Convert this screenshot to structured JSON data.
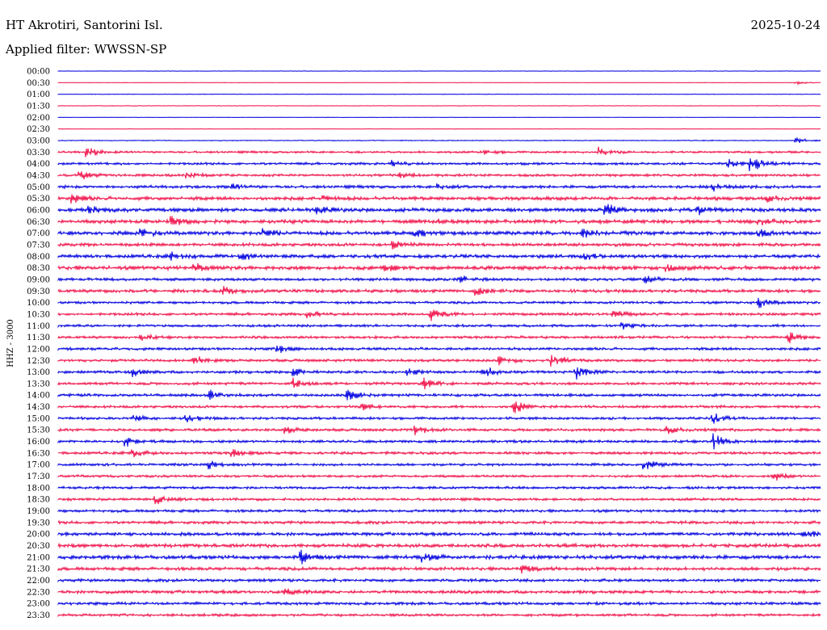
{
  "header": {
    "station": "HT Akrotiri, Santorini Isl.",
    "date": "2025-10-24",
    "filter": "Applied filter: WWSSN-SP"
  },
  "colors": {
    "trace_a": "#0000e0",
    "trace_b": "#f0124a",
    "background": "#ffffff",
    "text": "#000000"
  },
  "chart_data": {
    "type": "line",
    "ylabel": "HHZ - 3000",
    "time_labels": [
      "00:00",
      "00:30",
      "01:00",
      "01:30",
      "02:00",
      "02:30",
      "03:00",
      "03:30",
      "04:00",
      "04:30",
      "05:00",
      "05:30",
      "06:00",
      "06:30",
      "07:00",
      "07:30",
      "08:00",
      "08:30",
      "09:00",
      "09:30",
      "10:00",
      "10:30",
      "11:00",
      "11:30",
      "12:00",
      "12:30",
      "13:00",
      "13:30",
      "14:00",
      "14:30",
      "15:00",
      "15:30",
      "16:00",
      "16:30",
      "17:00",
      "17:30",
      "18:00",
      "18:30",
      "19:00",
      "19:30",
      "20:00",
      "20:30",
      "21:00",
      "21:30",
      "22:00",
      "22:30",
      "23:00",
      "23:30"
    ],
    "row_noise": [
      0.3,
      0.3,
      0.4,
      0.4,
      0.3,
      0.3,
      0.6,
      1.5,
      1.7,
      1.8,
      2.0,
      2.4,
      2.6,
      2.6,
      2.6,
      2.2,
      2.4,
      2.7,
      2.0,
      2.2,
      1.8,
      1.9,
      1.8,
      1.8,
      1.9,
      1.9,
      1.9,
      1.9,
      1.9,
      1.8,
      1.8,
      1.9,
      1.9,
      1.9,
      1.8,
      1.7,
      1.8,
      1.8,
      1.9,
      2.0,
      2.3,
      2.5,
      2.6,
      2.3,
      2.0,
      2.2,
      2.0,
      1.8
    ],
    "events": [
      {
        "row": 1,
        "t": 0.97,
        "a": 2
      },
      {
        "row": 6,
        "t": 0.97,
        "a": 4
      },
      {
        "row": 7,
        "t": 0.04,
        "a": 8
      },
      {
        "row": 7,
        "t": 0.56,
        "a": 4
      },
      {
        "row": 7,
        "t": 0.71,
        "a": 6
      },
      {
        "row": 8,
        "t": 0.44,
        "a": 4
      },
      {
        "row": 8,
        "t": 0.88,
        "a": 6
      },
      {
        "row": 8,
        "t": 0.91,
        "a": 10
      },
      {
        "row": 9,
        "t": 0.03,
        "a": 6
      },
      {
        "row": 9,
        "t": 0.17,
        "a": 4
      },
      {
        "row": 9,
        "t": 0.45,
        "a": 3
      },
      {
        "row": 10,
        "t": 0.23,
        "a": 4
      },
      {
        "row": 10,
        "t": 0.5,
        "a": 3
      },
      {
        "row": 10,
        "t": 0.86,
        "a": 5
      },
      {
        "row": 11,
        "t": 0.02,
        "a": 7
      },
      {
        "row": 11,
        "t": 0.35,
        "a": 4
      },
      {
        "row": 11,
        "t": 0.93,
        "a": 6
      },
      {
        "row": 12,
        "t": 0.04,
        "a": 6
      },
      {
        "row": 12,
        "t": 0.34,
        "a": 6
      },
      {
        "row": 12,
        "t": 0.72,
        "a": 9
      },
      {
        "row": 12,
        "t": 0.84,
        "a": 5
      },
      {
        "row": 13,
        "t": 0.15,
        "a": 6
      },
      {
        "row": 13,
        "t": 0.5,
        "a": 4
      },
      {
        "row": 13,
        "t": 0.92,
        "a": 5
      },
      {
        "row": 14,
        "t": 0.11,
        "a": 5
      },
      {
        "row": 14,
        "t": 0.27,
        "a": 6
      },
      {
        "row": 14,
        "t": 0.47,
        "a": 7
      },
      {
        "row": 14,
        "t": 0.69,
        "a": 7
      },
      {
        "row": 14,
        "t": 0.92,
        "a": 6
      },
      {
        "row": 15,
        "t": 0.44,
        "a": 6
      },
      {
        "row": 16,
        "t": 0.15,
        "a": 5
      },
      {
        "row": 16,
        "t": 0.24,
        "a": 5
      },
      {
        "row": 16,
        "t": 0.69,
        "a": 6
      },
      {
        "row": 17,
        "t": 0.18,
        "a": 5
      },
      {
        "row": 17,
        "t": 0.43,
        "a": 5
      },
      {
        "row": 17,
        "t": 0.8,
        "a": 4
      },
      {
        "row": 18,
        "t": 0.53,
        "a": 4
      },
      {
        "row": 18,
        "t": 0.77,
        "a": 6
      },
      {
        "row": 19,
        "t": 0.22,
        "a": 6
      },
      {
        "row": 19,
        "t": 0.55,
        "a": 6
      },
      {
        "row": 20,
        "t": 0.92,
        "a": 8
      },
      {
        "row": 21,
        "t": 0.33,
        "a": 5
      },
      {
        "row": 21,
        "t": 0.49,
        "a": 8
      },
      {
        "row": 21,
        "t": 0.73,
        "a": 6
      },
      {
        "row": 22,
        "t": 0.74,
        "a": 8
      },
      {
        "row": 23,
        "t": 0.11,
        "a": 4
      },
      {
        "row": 23,
        "t": 0.96,
        "a": 9
      },
      {
        "row": 24,
        "t": 0.29,
        "a": 5
      },
      {
        "row": 25,
        "t": 0.18,
        "a": 8
      },
      {
        "row": 25,
        "t": 0.58,
        "a": 6
      },
      {
        "row": 25,
        "t": 0.65,
        "a": 9
      },
      {
        "row": 26,
        "t": 0.1,
        "a": 5
      },
      {
        "row": 26,
        "t": 0.31,
        "a": 6
      },
      {
        "row": 26,
        "t": 0.46,
        "a": 5
      },
      {
        "row": 26,
        "t": 0.56,
        "a": 8
      },
      {
        "row": 26,
        "t": 0.68,
        "a": 9
      },
      {
        "row": 27,
        "t": 0.31,
        "a": 6
      },
      {
        "row": 27,
        "t": 0.48,
        "a": 8
      },
      {
        "row": 28,
        "t": 0.2,
        "a": 6
      },
      {
        "row": 28,
        "t": 0.38,
        "a": 10
      },
      {
        "row": 29,
        "t": 0.4,
        "a": 5
      },
      {
        "row": 29,
        "t": 0.6,
        "a": 9
      },
      {
        "row": 30,
        "t": 0.1,
        "a": 5
      },
      {
        "row": 30,
        "t": 0.17,
        "a": 5
      },
      {
        "row": 30,
        "t": 0.86,
        "a": 7
      },
      {
        "row": 31,
        "t": 0.3,
        "a": 5
      },
      {
        "row": 31,
        "t": 0.47,
        "a": 6
      },
      {
        "row": 31,
        "t": 0.8,
        "a": 7
      },
      {
        "row": 32,
        "t": 0.09,
        "a": 8
      },
      {
        "row": 32,
        "t": 0.86,
        "a": 11
      },
      {
        "row": 33,
        "t": 0.1,
        "a": 5
      },
      {
        "row": 33,
        "t": 0.23,
        "a": 6
      },
      {
        "row": 34,
        "t": 0.2,
        "a": 6
      },
      {
        "row": 34,
        "t": 0.77,
        "a": 7
      },
      {
        "row": 35,
        "t": 0.94,
        "a": 6
      },
      {
        "row": 37,
        "t": 0.13,
        "a": 7
      },
      {
        "row": 40,
        "t": 0.98,
        "a": 6
      },
      {
        "row": 42,
        "t": 0.32,
        "a": 8
      },
      {
        "row": 42,
        "t": 0.48,
        "a": 6
      },
      {
        "row": 43,
        "t": 0.61,
        "a": 5
      },
      {
        "row": 45,
        "t": 0.3,
        "a": 5
      }
    ]
  }
}
